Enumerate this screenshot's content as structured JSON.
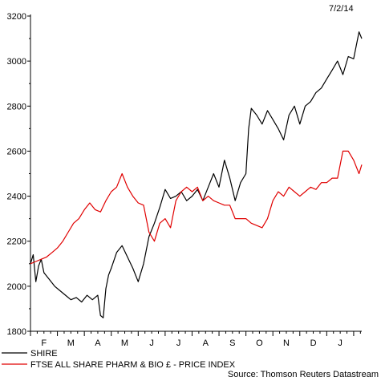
{
  "date_label": "7/2/14",
  "source": "Source: Thomson Reuters Datastream",
  "chart_data": {
    "type": "line",
    "ylim": [
      1800,
      3200
    ],
    "yticks": [
      1800,
      2000,
      2200,
      2400,
      2600,
      2800,
      3000,
      3200
    ],
    "months": [
      "F",
      "M",
      "A",
      "M",
      "J",
      "J",
      "A",
      "S",
      "O",
      "N",
      "D",
      "J"
    ],
    "x_range_months": [
      0,
      12.3
    ],
    "grid": false,
    "legend_position": "bottom-left",
    "colors": {
      "SHIRE": "#000000",
      "FTSE ALL SHARE PHARM & BIO £ - PRICE INDEX": "#e00000"
    },
    "series": [
      {
        "name": "SHIRE",
        "x": [
          0,
          0.1,
          0.2,
          0.3,
          0.4,
          0.5,
          0.7,
          0.9,
          1.1,
          1.3,
          1.5,
          1.7,
          1.9,
          2.1,
          2.3,
          2.5,
          2.6,
          2.7,
          2.8,
          2.9,
          3.0,
          3.2,
          3.4,
          3.6,
          3.8,
          4.0,
          4.2,
          4.4,
          4.6,
          4.8,
          5.0,
          5.2,
          5.4,
          5.6,
          5.8,
          6.0,
          6.2,
          6.4,
          6.6,
          6.8,
          7.0,
          7.2,
          7.4,
          7.6,
          7.8,
          8.0,
          8.1,
          8.2,
          8.4,
          8.6,
          8.8,
          9.0,
          9.2,
          9.4,
          9.6,
          9.8,
          10.0,
          10.2,
          10.4,
          10.6,
          10.8,
          11.0,
          11.2,
          11.4,
          11.6,
          11.8,
          12.0,
          12.2,
          12.3
        ],
        "values": [
          2100,
          2140,
          2020,
          2090,
          2120,
          2060,
          2030,
          2000,
          1980,
          1960,
          1940,
          1950,
          1930,
          1960,
          1940,
          1960,
          1870,
          1860,
          1990,
          2050,
          2080,
          2150,
          2180,
          2130,
          2080,
          2020,
          2100,
          2220,
          2280,
          2350,
          2430,
          2390,
          2400,
          2420,
          2380,
          2400,
          2430,
          2380,
          2440,
          2500,
          2440,
          2560,
          2480,
          2380,
          2460,
          2500,
          2700,
          2790,
          2760,
          2720,
          2780,
          2740,
          2700,
          2650,
          2760,
          2800,
          2720,
          2800,
          2820,
          2860,
          2880,
          2920,
          2960,
          3000,
          2940,
          3020,
          3010,
          3130,
          3100
        ]
      },
      {
        "name": "FTSE ALL SHARE PHARM & BIO £ - PRICE INDEX",
        "x": [
          0,
          0.2,
          0.4,
          0.6,
          0.8,
          1.0,
          1.2,
          1.4,
          1.6,
          1.8,
          2.0,
          2.2,
          2.4,
          2.6,
          2.8,
          3.0,
          3.2,
          3.4,
          3.6,
          3.8,
          4.0,
          4.2,
          4.4,
          4.6,
          4.8,
          5.0,
          5.2,
          5.4,
          5.6,
          5.8,
          6.0,
          6.2,
          6.4,
          6.6,
          6.8,
          7.0,
          7.2,
          7.4,
          7.6,
          7.8,
          8.0,
          8.2,
          8.4,
          8.6,
          8.8,
          9.0,
          9.2,
          9.4,
          9.6,
          9.8,
          10.0,
          10.2,
          10.4,
          10.6,
          10.8,
          11.0,
          11.2,
          11.4,
          11.6,
          11.8,
          12.0,
          12.2,
          12.3
        ],
        "values": [
          2100,
          2110,
          2120,
          2130,
          2150,
          2170,
          2200,
          2240,
          2280,
          2300,
          2340,
          2370,
          2340,
          2330,
          2380,
          2420,
          2440,
          2500,
          2440,
          2400,
          2370,
          2360,
          2240,
          2200,
          2280,
          2300,
          2260,
          2380,
          2420,
          2440,
          2420,
          2440,
          2380,
          2400,
          2380,
          2370,
          2360,
          2360,
          2300,
          2300,
          2300,
          2280,
          2270,
          2260,
          2300,
          2380,
          2420,
          2400,
          2440,
          2420,
          2400,
          2420,
          2440,
          2430,
          2460,
          2460,
          2480,
          2480,
          2600,
          2600,
          2560,
          2500,
          2540
        ]
      }
    ]
  }
}
